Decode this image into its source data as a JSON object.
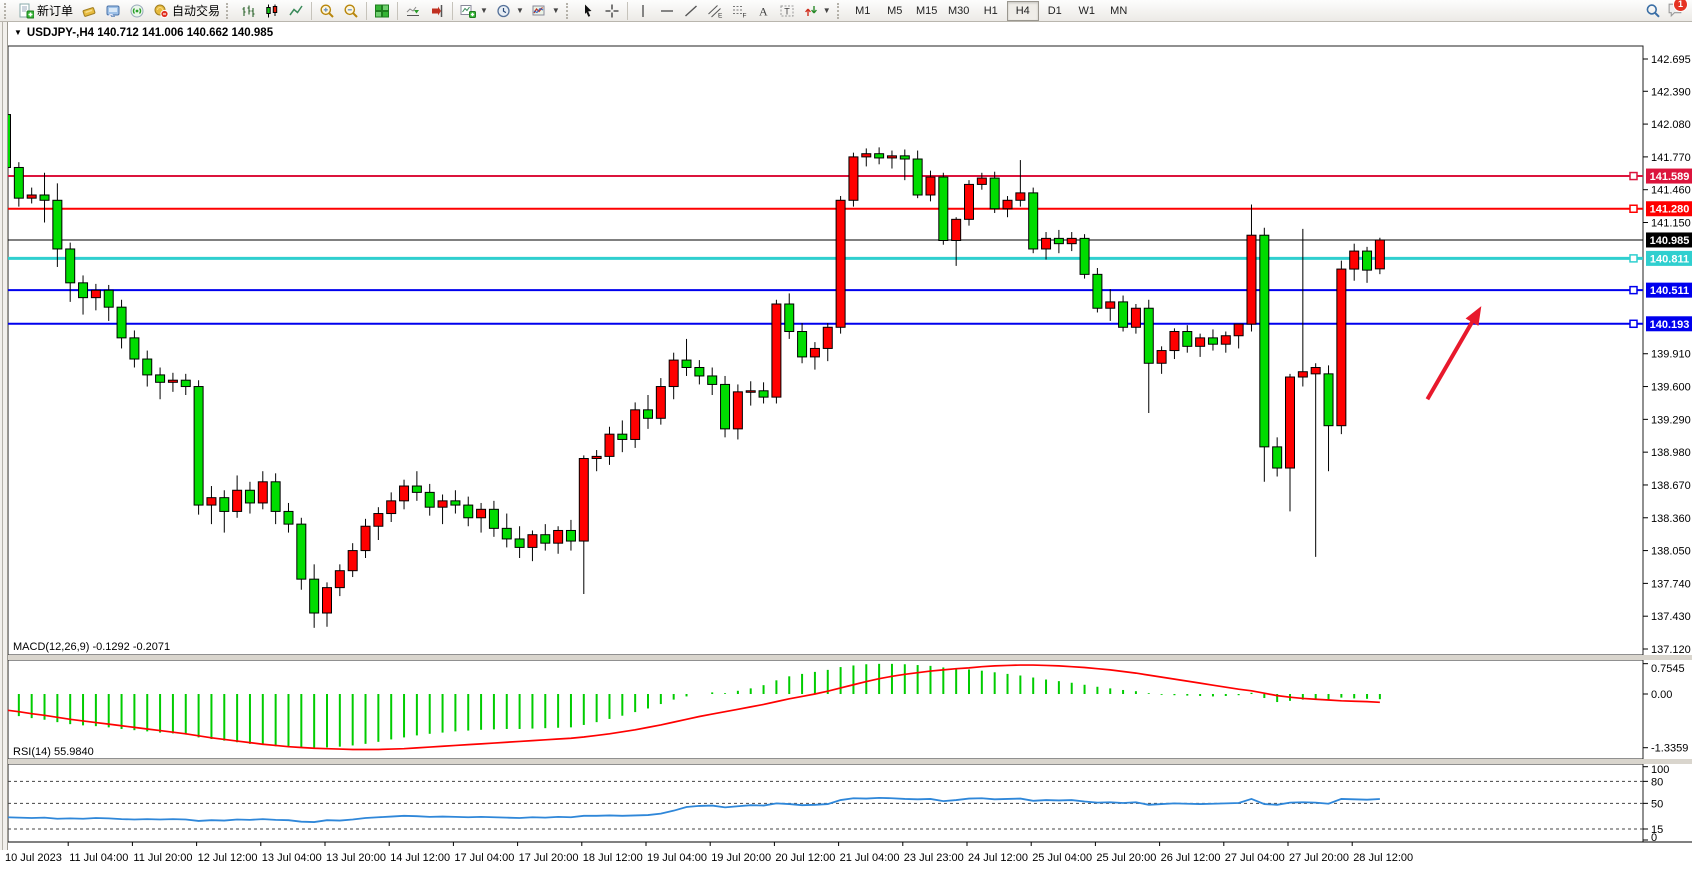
{
  "toolbar": {
    "new_order_label": "新订单",
    "autotrading_label": "自动交易",
    "timeframes": [
      "M1",
      "M5",
      "M15",
      "M30",
      "H1",
      "H4",
      "D1",
      "W1",
      "MN"
    ],
    "active_timeframe": "H4",
    "notification_count": "1"
  },
  "chart": {
    "title_display": "USDJPY-,H4  140.712 141.006 140.662 140.985",
    "symbol": "USDJPY-",
    "period": "H4",
    "ohlc_display": {
      "open": "140.712",
      "high": "141.006",
      "low": "140.662",
      "close": "140.985"
    },
    "macd_label": "MACD(12,26,9) -0.1292 -0.2071",
    "rsi_label": "RSI(14) 55.9840"
  },
  "price_axis": {
    "ticks": [
      "142.695",
      "142.390",
      "142.080",
      "141.770",
      "141.460",
      "141.150",
      "139.910",
      "139.600",
      "139.290",
      "138.980",
      "138.670",
      "138.360",
      "138.050",
      "137.740",
      "137.430",
      "137.120"
    ],
    "badges": [
      {
        "value": 141.589,
        "label": "141.589",
        "color": "#dc143c",
        "text": "#ffffff"
      },
      {
        "value": 141.28,
        "label": "141.280",
        "color": "#fe0000",
        "text": "#ffffff"
      },
      {
        "value": 140.985,
        "label": "140.985",
        "color": "#000000",
        "text": "#ffffff"
      },
      {
        "value": 140.811,
        "label": "140.811",
        "color": "#2fcfcf",
        "text": "#ffffff"
      },
      {
        "value": 140.511,
        "label": "140.511",
        "color": "#0000ee",
        "text": "#ffffff"
      },
      {
        "value": 140.193,
        "label": "140.193",
        "color": "#0000ee",
        "text": "#ffffff"
      }
    ]
  },
  "time_axis": {
    "labels": [
      "10 Jul 2023",
      "11 Jul 04:00",
      "11 Jul 20:00",
      "12 Jul 12:00",
      "13 Jul 04:00",
      "13 Jul 20:00",
      "14 Jul 12:00",
      "17 Jul 04:00",
      "17 Jul 20:00",
      "18 Jul 12:00",
      "19 Jul 04:00",
      "19 Jul 20:00",
      "20 Jul 12:00",
      "21 Jul 04:00",
      "23 Jul 23:00",
      "24 Jul 12:00",
      "25 Jul 04:00",
      "25 Jul 20:00",
      "26 Jul 12:00",
      "27 Jul 04:00",
      "27 Jul 20:00",
      "28 Jul 12:00"
    ]
  },
  "hlines": [
    {
      "price": 141.589,
      "color": "#dc143c",
      "width": 2
    },
    {
      "price": 141.28,
      "color": "#fe0000",
      "width": 2
    },
    {
      "price": 140.811,
      "color": "#2fcfcf",
      "width": 3
    },
    {
      "price": 140.511,
      "color": "#0000ee",
      "width": 2
    },
    {
      "price": 140.193,
      "color": "#0000ee",
      "width": 2
    }
  ],
  "current_price": {
    "value": 140.985,
    "color": "#000000"
  },
  "annotations": {
    "arrow": {
      "color": "#e8192c",
      "from": {
        "bar": 110.7,
        "price": 139.48
      },
      "to": {
        "bar": 114.9,
        "price": 140.36
      }
    }
  },
  "chart_data": {
    "type": "candlestick",
    "symbol": "USDJPY-",
    "timeframe": "H4",
    "bull_color": "#ff0000",
    "bear_color": "#00dc00",
    "price_range": [
      137.12,
      142.695
    ],
    "candles": [
      [
        142.17,
        142.6,
        141.6,
        141.67
      ],
      [
        141.67,
        141.72,
        141.3,
        141.38
      ],
      [
        141.38,
        141.48,
        141.33,
        141.41
      ],
      [
        141.41,
        141.62,
        141.15,
        141.36
      ],
      [
        141.36,
        141.52,
        140.73,
        140.9
      ],
      [
        140.9,
        140.96,
        140.4,
        140.58
      ],
      [
        140.58,
        140.65,
        140.28,
        140.44
      ],
      [
        140.44,
        140.57,
        140.32,
        140.51
      ],
      [
        140.51,
        140.56,
        140.22,
        140.35
      ],
      [
        140.35,
        140.42,
        139.96,
        140.06
      ],
      [
        140.06,
        140.13,
        139.78,
        139.86
      ],
      [
        139.86,
        139.94,
        139.6,
        139.71
      ],
      [
        139.71,
        139.78,
        139.48,
        139.64
      ],
      [
        139.64,
        139.73,
        139.55,
        139.66
      ],
      [
        139.66,
        139.72,
        139.52,
        139.6
      ],
      [
        139.6,
        139.66,
        138.39,
        138.48
      ],
      [
        138.48,
        138.66,
        138.3,
        138.55
      ],
      [
        138.55,
        138.62,
        138.22,
        138.42
      ],
      [
        138.42,
        138.76,
        138.36,
        138.62
      ],
      [
        138.62,
        138.7,
        138.4,
        138.5
      ],
      [
        138.5,
        138.8,
        138.44,
        138.7
      ],
      [
        138.7,
        138.78,
        138.3,
        138.42
      ],
      [
        138.42,
        138.5,
        138.22,
        138.3
      ],
      [
        138.3,
        138.36,
        137.68,
        137.78
      ],
      [
        137.78,
        137.92,
        137.32,
        137.46
      ],
      [
        137.46,
        137.75,
        137.33,
        137.7
      ],
      [
        137.7,
        137.92,
        137.62,
        137.86
      ],
      [
        137.86,
        138.12,
        137.8,
        138.05
      ],
      [
        138.05,
        138.35,
        137.98,
        138.28
      ],
      [
        138.28,
        138.46,
        138.15,
        138.4
      ],
      [
        138.4,
        138.6,
        138.32,
        138.52
      ],
      [
        138.52,
        138.72,
        138.44,
        138.66
      ],
      [
        138.66,
        138.8,
        138.52,
        138.6
      ],
      [
        138.6,
        138.68,
        138.38,
        138.46
      ],
      [
        138.46,
        138.58,
        138.3,
        138.52
      ],
      [
        138.52,
        138.62,
        138.4,
        138.48
      ],
      [
        138.48,
        138.56,
        138.28,
        138.36
      ],
      [
        138.36,
        138.5,
        138.22,
        138.44
      ],
      [
        138.44,
        138.52,
        138.18,
        138.26
      ],
      [
        138.26,
        138.4,
        138.08,
        138.16
      ],
      [
        138.16,
        138.28,
        137.98,
        138.08
      ],
      [
        138.08,
        138.24,
        137.95,
        138.2
      ],
      [
        138.2,
        138.3,
        138.05,
        138.12
      ],
      [
        138.12,
        138.28,
        138.02,
        138.24
      ],
      [
        138.24,
        138.34,
        138.05,
        138.14
      ],
      [
        138.14,
        138.95,
        137.64,
        138.92
      ],
      [
        138.92,
        139.0,
        138.8,
        138.94
      ],
      [
        138.94,
        139.22,
        138.86,
        139.15
      ],
      [
        139.15,
        139.28,
        138.98,
        139.1
      ],
      [
        139.1,
        139.45,
        139.02,
        139.38
      ],
      [
        139.38,
        139.52,
        139.2,
        139.3
      ],
      [
        139.3,
        139.68,
        139.24,
        139.6
      ],
      [
        139.6,
        139.92,
        139.48,
        139.85
      ],
      [
        139.85,
        140.05,
        139.7,
        139.78
      ],
      [
        139.78,
        139.85,
        139.62,
        139.7
      ],
      [
        139.7,
        139.78,
        139.52,
        139.62
      ],
      [
        139.62,
        139.7,
        139.12,
        139.2
      ],
      [
        139.2,
        139.62,
        139.1,
        139.55
      ],
      [
        139.55,
        139.65,
        139.42,
        139.56
      ],
      [
        139.56,
        139.64,
        139.44,
        139.5
      ],
      [
        139.5,
        140.42,
        139.44,
        140.38
      ],
      [
        140.38,
        140.48,
        140.05,
        140.12
      ],
      [
        140.12,
        140.2,
        139.82,
        139.88
      ],
      [
        139.88,
        140.02,
        139.76,
        139.96
      ],
      [
        139.96,
        140.2,
        139.84,
        140.16
      ],
      [
        140.16,
        141.4,
        140.1,
        141.36
      ],
      [
        141.36,
        141.81,
        141.3,
        141.77
      ],
      [
        141.77,
        141.85,
        141.68,
        141.8
      ],
      [
        141.8,
        141.86,
        141.7,
        141.76
      ],
      [
        141.76,
        141.83,
        141.66,
        141.78
      ],
      [
        141.78,
        141.84,
        141.55,
        141.75
      ],
      [
        141.75,
        141.83,
        141.38,
        141.41
      ],
      [
        141.41,
        141.64,
        141.35,
        141.58
      ],
      [
        141.58,
        141.62,
        140.94,
        140.98
      ],
      [
        140.98,
        141.2,
        140.74,
        141.18
      ],
      [
        141.18,
        141.55,
        141.12,
        141.51
      ],
      [
        141.51,
        141.62,
        141.46,
        141.57
      ],
      [
        141.57,
        141.63,
        141.24,
        141.28
      ],
      [
        141.28,
        141.4,
        141.2,
        141.36
      ],
      [
        141.36,
        141.74,
        141.3,
        141.43
      ],
      [
        141.43,
        141.48,
        140.86,
        140.9
      ],
      [
        140.9,
        141.06,
        140.8,
        141.0
      ],
      [
        141.0,
        141.08,
        140.86,
        140.95
      ],
      [
        140.95,
        141.06,
        140.88,
        141.0
      ],
      [
        141.0,
        141.04,
        140.62,
        140.66
      ],
      [
        140.66,
        140.72,
        140.3,
        140.34
      ],
      [
        140.34,
        140.52,
        140.22,
        140.4
      ],
      [
        140.4,
        140.46,
        140.12,
        140.16
      ],
      [
        140.16,
        140.38,
        140.1,
        140.34
      ],
      [
        140.34,
        140.42,
        139.35,
        139.82
      ],
      [
        139.82,
        139.98,
        139.72,
        139.94
      ],
      [
        139.94,
        140.15,
        139.86,
        140.12
      ],
      [
        140.12,
        140.18,
        139.92,
        139.98
      ],
      [
        139.98,
        140.1,
        139.88,
        140.06
      ],
      [
        140.06,
        140.14,
        139.94,
        140.0
      ],
      [
        140.0,
        140.12,
        139.92,
        140.08
      ],
      [
        140.08,
        140.16,
        139.96,
        140.19
      ],
      [
        140.19,
        141.32,
        140.12,
        141.03
      ],
      [
        141.03,
        141.1,
        138.7,
        139.03
      ],
      [
        139.03,
        139.12,
        138.75,
        138.83
      ],
      [
        138.83,
        139.72,
        138.42,
        139.69
      ],
      [
        139.69,
        141.09,
        139.6,
        139.74
      ],
      [
        139.72,
        139.82,
        137.99,
        139.78
      ],
      [
        139.72,
        139.8,
        138.8,
        139.23
      ],
      [
        139.23,
        140.79,
        139.15,
        140.71
      ],
      [
        140.71,
        140.95,
        140.6,
        140.88
      ],
      [
        140.88,
        140.92,
        140.58,
        140.7
      ],
      [
        140.712,
        141.006,
        140.662,
        140.985
      ]
    ],
    "indicators": {
      "macd": {
        "params": [
          12,
          26,
          9
        ],
        "current_main": -0.1292,
        "current_signal": -0.2071,
        "scale_labels": [
          "0.7545",
          "0.00",
          "-1.3359"
        ],
        "scale_values": [
          0.7545,
          0.0,
          -1.3359
        ],
        "histogram": [
          -0.5,
          -0.55,
          -0.6,
          -0.64,
          -0.7,
          -0.75,
          -0.78,
          -0.8,
          -0.83,
          -0.87,
          -0.9,
          -0.93,
          -0.96,
          -0.98,
          -1.01,
          -1.08,
          -1.12,
          -1.16,
          -1.2,
          -1.24,
          -1.27,
          -1.3,
          -1.32,
          -1.33,
          -1.34,
          -1.33,
          -1.31,
          -1.28,
          -1.24,
          -1.19,
          -1.13,
          -1.08,
          -1.03,
          -0.99,
          -0.96,
          -0.93,
          -0.91,
          -0.89,
          -0.88,
          -0.87,
          -0.87,
          -0.86,
          -0.85,
          -0.84,
          -0.83,
          -0.77,
          -0.7,
          -0.62,
          -0.54,
          -0.45,
          -0.36,
          -0.25,
          -0.14,
          -0.06,
          0.0,
          0.04,
          0.02,
          0.08,
          0.14,
          0.22,
          0.34,
          0.44,
          0.5,
          0.55,
          0.6,
          0.67,
          0.71,
          0.74,
          0.75,
          0.75,
          0.74,
          0.72,
          0.7,
          0.66,
          0.63,
          0.61,
          0.58,
          0.54,
          0.5,
          0.46,
          0.41,
          0.36,
          0.32,
          0.28,
          0.23,
          0.18,
          0.14,
          0.1,
          0.07,
          0.02,
          -0.02,
          -0.03,
          -0.04,
          -0.05,
          -0.06,
          -0.05,
          -0.03,
          0.03,
          -0.1,
          -0.2,
          -0.17,
          -0.14,
          -0.13,
          -0.16,
          -0.09,
          -0.11,
          -0.12,
          -0.1292
        ],
        "signal": [
          -0.4,
          -0.44,
          -0.49,
          -0.53,
          -0.58,
          -0.63,
          -0.67,
          -0.71,
          -0.75,
          -0.79,
          -0.83,
          -0.87,
          -0.91,
          -0.95,
          -0.99,
          -1.04,
          -1.09,
          -1.13,
          -1.17,
          -1.21,
          -1.25,
          -1.28,
          -1.31,
          -1.33,
          -1.35,
          -1.36,
          -1.37,
          -1.38,
          -1.38,
          -1.38,
          -1.37,
          -1.36,
          -1.34,
          -1.32,
          -1.3,
          -1.28,
          -1.26,
          -1.24,
          -1.22,
          -1.2,
          -1.18,
          -1.16,
          -1.14,
          -1.12,
          -1.1,
          -1.07,
          -1.03,
          -0.99,
          -0.94,
          -0.89,
          -0.83,
          -0.77,
          -0.7,
          -0.63,
          -0.56,
          -0.5,
          -0.44,
          -0.38,
          -0.32,
          -0.26,
          -0.19,
          -0.12,
          -0.06,
          0.0,
          0.07,
          0.15,
          0.23,
          0.31,
          0.38,
          0.44,
          0.49,
          0.53,
          0.57,
          0.6,
          0.63,
          0.65,
          0.68,
          0.7,
          0.71,
          0.72,
          0.72,
          0.71,
          0.7,
          0.68,
          0.66,
          0.63,
          0.6,
          0.56,
          0.52,
          0.47,
          0.42,
          0.37,
          0.32,
          0.27,
          0.22,
          0.17,
          0.12,
          0.08,
          0.02,
          -0.04,
          -0.08,
          -0.11,
          -0.13,
          -0.15,
          -0.17,
          -0.18,
          -0.19,
          -0.2071
        ]
      },
      "rsi": {
        "period": 14,
        "current": 55.984,
        "levels": [
          80,
          50,
          15
        ],
        "range": [
          0,
          100
        ],
        "scale_labels": [
          "100",
          "80",
          "50",
          "15",
          "0"
        ],
        "values": [
          31,
          30.5,
          30,
          30.5,
          29,
          29.5,
          29,
          30,
          29.5,
          28.5,
          28,
          28.5,
          28,
          28.5,
          28,
          26,
          27,
          26.5,
          28,
          27.5,
          28.5,
          27.5,
          27,
          25,
          24.5,
          27,
          26.5,
          28,
          30,
          31,
          32,
          33,
          32.5,
          31.5,
          32,
          31.5,
          31,
          31.5,
          31,
          30.5,
          30,
          31,
          30.5,
          31.5,
          31,
          33,
          33,
          33.5,
          33,
          33.5,
          34,
          36,
          40,
          45,
          46.5,
          47,
          44.5,
          46,
          47.5,
          47,
          50,
          49,
          47.5,
          48,
          49,
          54.5,
          57,
          56.5,
          57.5,
          57,
          56,
          55.5,
          56,
          53,
          54.5,
          56.5,
          57,
          55.5,
          56,
          56.5,
          53.5,
          54.5,
          54,
          54.5,
          52.5,
          51,
          51.5,
          50.5,
          51.5,
          48,
          49,
          50,
          49.5,
          49,
          49.5,
          50,
          50.5,
          56,
          49,
          48,
          51,
          51.5,
          51,
          49.5,
          56,
          55.5,
          55,
          55.98
        ]
      }
    }
  }
}
